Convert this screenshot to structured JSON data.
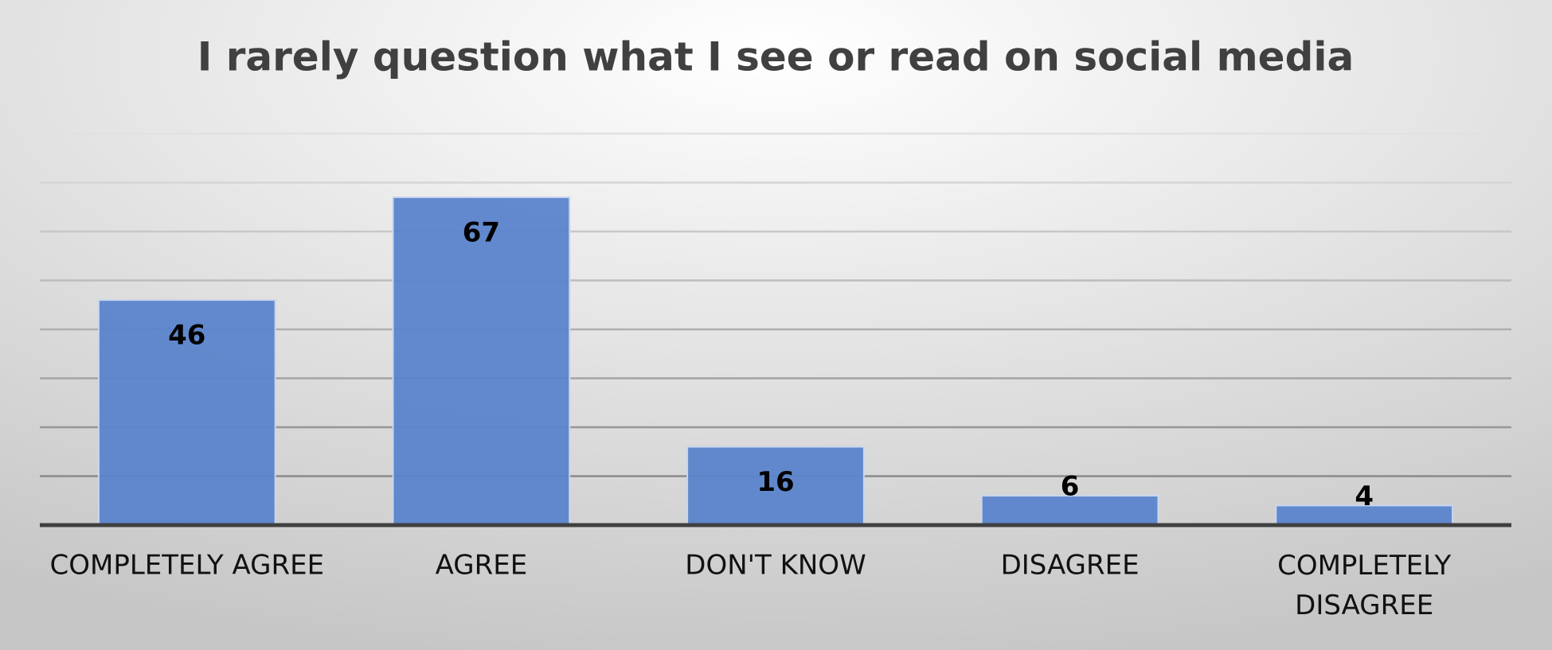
{
  "chart_data": {
    "type": "bar",
    "title": "I rarely question what I see or read on social media",
    "categories": [
      "COMPLETELY AGREE",
      "AGREE",
      "DON'T KNOW",
      "DISAGREE",
      "COMPLETELY DISAGREE"
    ],
    "values": [
      46,
      67,
      16,
      6,
      4
    ],
    "color": "#5b84cb",
    "ylim": [
      0,
      80
    ],
    "yticks": [
      0,
      10,
      20,
      30,
      40,
      50,
      60,
      70,
      80
    ],
    "grid": true
  }
}
